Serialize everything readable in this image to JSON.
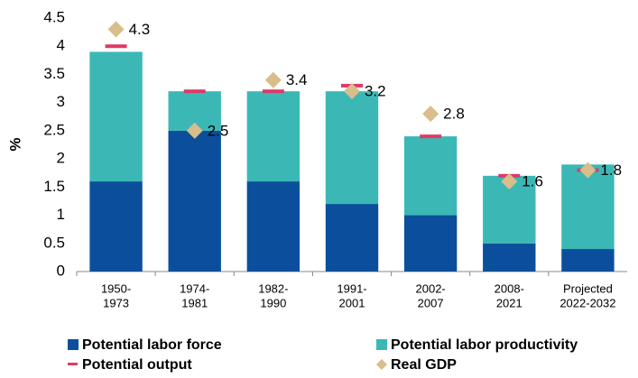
{
  "chart_data": {
    "type": "stacked_bar",
    "y_label": "%",
    "categories": [
      [
        "1950-",
        "1973"
      ],
      [
        "1974-",
        "1981"
      ],
      [
        "1982-",
        "1990"
      ],
      [
        "1991-",
        "2001"
      ],
      [
        "2002-",
        "2007"
      ],
      [
        "2008-",
        "2021"
      ],
      [
        "Projected",
        "2022-2032"
      ]
    ],
    "series": [
      {
        "name": "Potential labor force",
        "color": "#0b4f9c",
        "kind": "bar",
        "values": [
          1.6,
          2.5,
          1.6,
          1.2,
          1.0,
          0.5,
          0.4
        ]
      },
      {
        "name": "Potential labor productivity",
        "color": "#3bb8b6",
        "kind": "bar",
        "values": [
          2.3,
          0.7,
          1.6,
          2.0,
          1.4,
          1.2,
          1.5
        ]
      },
      {
        "name": "Potential output",
        "color": "#e03a66",
        "kind": "dash",
        "values": [
          4.0,
          3.2,
          3.2,
          3.3,
          2.4,
          1.7,
          1.8
        ]
      },
      {
        "name": "Real GDP",
        "color": "#d9bd8a",
        "kind": "diamond",
        "values": [
          4.3,
          2.5,
          3.4,
          3.2,
          2.8,
          1.6,
          1.8
        ]
      }
    ],
    "ylim": [
      0,
      4.5
    ],
    "yticks": [
      0,
      0.5,
      1,
      1.5,
      2,
      2.5,
      3,
      3.5,
      4,
      4.5
    ],
    "grid": false
  }
}
